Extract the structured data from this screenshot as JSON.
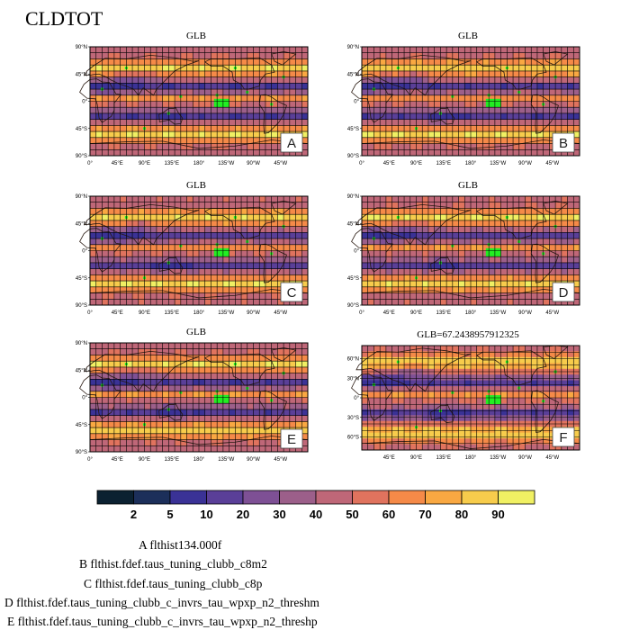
{
  "title": "CLDTOT",
  "colors": {
    "land": "#2a1a12",
    "grid": "#000000",
    "highlight": "#22ee22",
    "palette": [
      "#0b2131",
      "#1c2f5a",
      "#3a3296",
      "#5a3f98",
      "#7e5095",
      "#9c5f8a",
      "#bf6778",
      "#e0735e",
      "#f58a48",
      "#f9a842",
      "#f7cc4c",
      "#f0f063"
    ]
  },
  "panels": [
    {
      "title": "GLB",
      "letter": "A",
      "lat_ticks": [
        "90°N",
        "45°N",
        "0°",
        "45°S",
        "90°S"
      ],
      "lon_ticks": [
        "0°",
        "45°E",
        "90°E",
        "135°E",
        "180°",
        "135°W",
        "90°W",
        "45°W"
      ]
    },
    {
      "title": "GLB",
      "letter": "B",
      "lat_ticks": [
        "90°N",
        "45°N",
        "0°",
        "45°S",
        "90°S"
      ],
      "lon_ticks": [
        "0°",
        "45°E",
        "90°E",
        "135°E",
        "180°",
        "135°W",
        "90°W",
        "45°W"
      ]
    },
    {
      "title": "GLB",
      "letter": "C",
      "lat_ticks": [
        "90°N",
        "45°N",
        "0°",
        "45°S",
        "90°S"
      ],
      "lon_ticks": [
        "0°",
        "45°E",
        "90°E",
        "135°E",
        "180°",
        "135°W",
        "90°W",
        "45°W"
      ]
    },
    {
      "title": "GLB",
      "letter": "D",
      "lat_ticks": [
        "90°N",
        "45°N",
        "0°",
        "45°S",
        "90°S"
      ],
      "lon_ticks": [
        "0°",
        "45°E",
        "90°E",
        "135°E",
        "180°",
        "135°W",
        "90°W",
        "45°W"
      ]
    },
    {
      "title": "GLB",
      "letter": "E",
      "lat_ticks": [
        "90°N",
        "45°N",
        "0°",
        "45°S",
        "90°S"
      ],
      "lon_ticks": [
        "0°",
        "45°E",
        "90°E",
        "135°E",
        "180°",
        "135°W",
        "90°W",
        "45°W"
      ]
    },
    {
      "title": "GLB=67.2438957912325",
      "letter": "F",
      "lat_ticks": [
        "60°N",
        "30°N",
        "0°",
        "30°S",
        "60°S"
      ],
      "lon_ticks": [
        "45°E",
        "90°E",
        "135°E",
        "180°",
        "135°W",
        "90°W",
        "45°W"
      ]
    }
  ],
  "chart_data": {
    "type": "heatmap",
    "title": "CLDTOT",
    "variable": "CLDTOT",
    "colorbar_levels": [
      2,
      5,
      10,
      20,
      30,
      40,
      50,
      60,
      70,
      80,
      90
    ],
    "colorbar_labels": [
      "2",
      "5",
      "10",
      "20",
      "30",
      "40",
      "50",
      "60",
      "70",
      "80",
      "90"
    ],
    "panels": [
      "A",
      "B",
      "C",
      "D",
      "E",
      "F"
    ],
    "global_mean_F": 67.2438957912325
  },
  "legend": [
    "A  flthist134.000f",
    "B  flthist.fdef.taus_tuning_clubb_c8m2",
    "C  flthist.fdef.taus_tuning_clubb_c8p",
    "D  flthist.fdef.taus_tuning_clubb_c_invrs_tau_wpxp_n2_threshm",
    "E  flthist.fdef.taus_tuning_clubb_c_invrs_tau_wpxp_n2_threshp"
  ]
}
